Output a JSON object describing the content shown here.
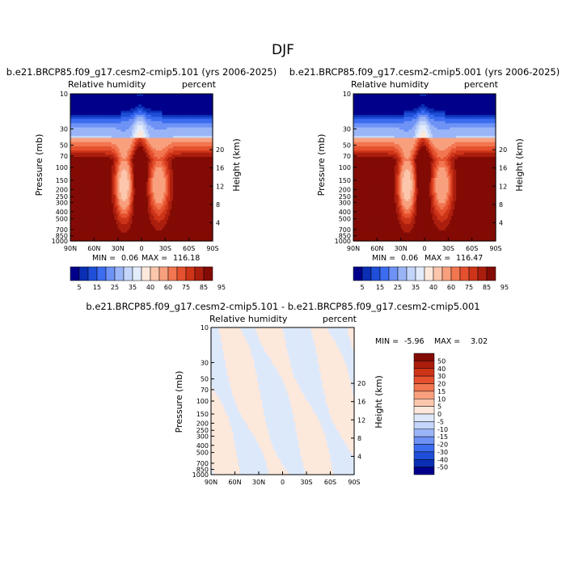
{
  "page_title": "DJF",
  "chart_data": [
    {
      "type": "heatmap",
      "title": "b.e21.BRCP85.f09_g17.cesm2-cmip5.101 (yrs 2006-2025)",
      "variable_label": "Relative humidity",
      "units_label": "percent",
      "xlabel": "",
      "ylabel": "Pressure (mb)",
      "y2label": "Height (km)",
      "x_ticks": [
        "90N",
        "60N",
        "30N",
        "0",
        "30S",
        "60S",
        "90S"
      ],
      "y_ticks": [
        "10",
        "30",
        "50",
        "70",
        "100",
        "150",
        "200",
        "250",
        "300",
        "400",
        "500",
        "700",
        "850",
        "1000"
      ],
      "y2_ticks": [
        "20",
        "16",
        "12",
        "8",
        "4"
      ],
      "ylim": [
        1000,
        10
      ],
      "min_label": "MIN =",
      "min_value": "0.06",
      "max_label": "MAX =",
      "max_value": "116.18",
      "colorbar_levels": [
        "5",
        "15",
        "25",
        "35",
        "40",
        "60",
        "75",
        "85",
        "95"
      ]
    },
    {
      "type": "heatmap",
      "title": "b.e21.BRCP85.f09_g17.cesm2-cmip5.001 (yrs 2006-2025)",
      "variable_label": "Relative humidity",
      "units_label": "percent",
      "xlabel": "",
      "ylabel": "Pressure (mb)",
      "y2label": "Height (km)",
      "x_ticks": [
        "90N",
        "60N",
        "30N",
        "0",
        "30S",
        "60S",
        "90S"
      ],
      "y_ticks": [
        "10",
        "30",
        "50",
        "70",
        "100",
        "150",
        "200",
        "250",
        "300",
        "400",
        "500",
        "700",
        "850",
        "1000"
      ],
      "y2_ticks": [
        "20",
        "16",
        "12",
        "8",
        "4"
      ],
      "ylim": [
        1000,
        10
      ],
      "min_label": "MIN =",
      "min_value": "0.06",
      "max_label": "MAX =",
      "max_value": "116.47",
      "colorbar_levels": [
        "5",
        "15",
        "25",
        "35",
        "40",
        "60",
        "75",
        "85",
        "95"
      ]
    },
    {
      "type": "heatmap",
      "title": "b.e21.BRCP85.f09_g17.cesm2-cmip5.101 - b.e21.BRCP85.f09_g17.cesm2-cmip5.001",
      "variable_label": "Relative humidity",
      "units_label": "percent",
      "xlabel": "",
      "ylabel": "Pressure (mb)",
      "y2label": "Height (km)",
      "x_ticks": [
        "90N",
        "60N",
        "30N",
        "0",
        "30S",
        "60S",
        "90S"
      ],
      "y_ticks": [
        "10",
        "30",
        "50",
        "70",
        "100",
        "150",
        "200",
        "250",
        "300",
        "400",
        "500",
        "700",
        "850",
        "1000"
      ],
      "y2_ticks": [
        "20",
        "16",
        "12",
        "8",
        "4"
      ],
      "ylim": [
        1000,
        10
      ],
      "min_label": "MIN =",
      "min_value": "-5.96",
      "max_label": "MAX =",
      "max_value": "3.02",
      "colorbar_levels": [
        "50",
        "40",
        "30",
        "20",
        "15",
        "10",
        "5",
        "0",
        "-5",
        "-10",
        "-15",
        "-20",
        "-30",
        "-40",
        "-50"
      ]
    }
  ],
  "colors": {
    "rh_scale": [
      "#00008b",
      "#0a2fb5",
      "#1f4fd8",
      "#3c6cf0",
      "#6e92f5",
      "#9ab5f7",
      "#c3d5f9",
      "#e2ecfb",
      "#fde8dc",
      "#fbc6ac",
      "#f8a07e",
      "#f27650",
      "#e5512f",
      "#cd3418",
      "#ab1e0e",
      "#830b05"
    ],
    "diff_scale": [
      "#00008b",
      "#0a2fb5",
      "#1f4fd8",
      "#3c6cf0",
      "#6e92f5",
      "#9ab5f7",
      "#c3d5f9",
      "#dde9fb",
      "#fde8dc",
      "#fbc6ac",
      "#f8a07e",
      "#f27650",
      "#e5512f",
      "#cd3418",
      "#ab1e0e",
      "#830b05"
    ]
  }
}
